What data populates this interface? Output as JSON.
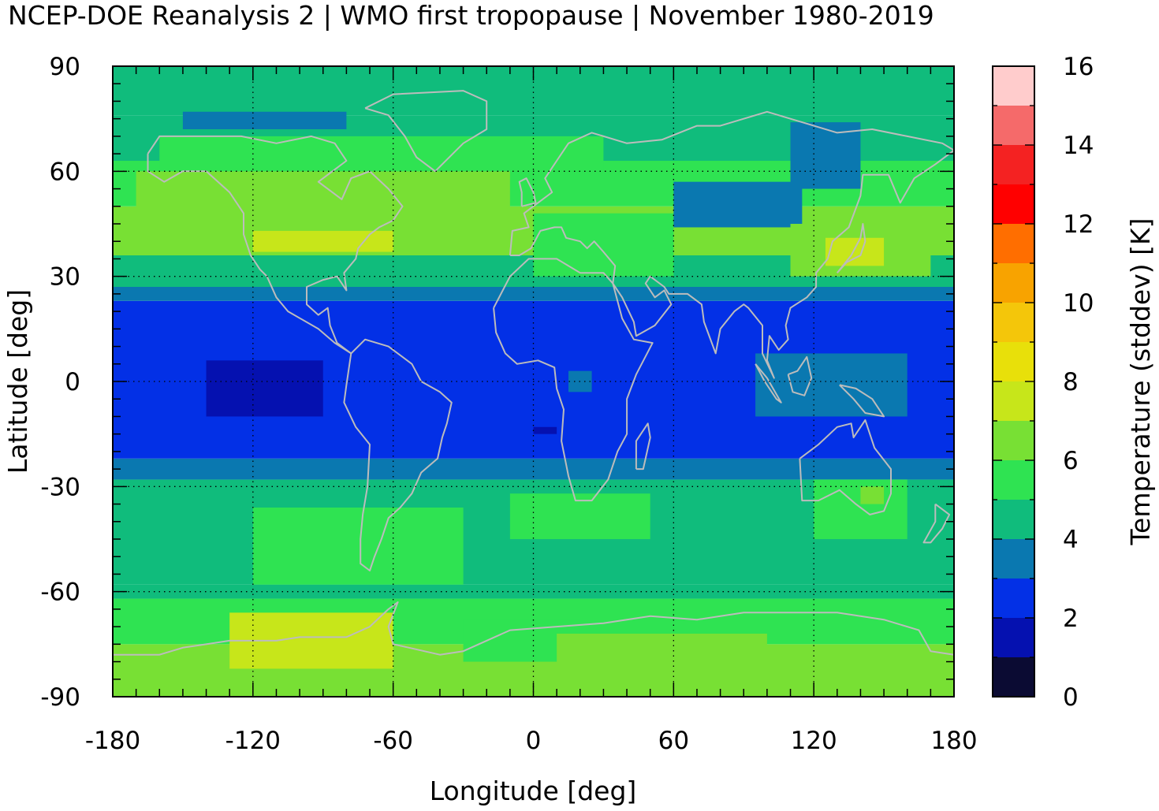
{
  "title": "NCEP-DOE Reanalysis 2 | WMO first tropopause | November 1980-2019",
  "chart_data": {
    "type": "heatmap",
    "xlabel": "Longitude [deg]",
    "ylabel": "Latitude [deg]",
    "xlim": [
      -180,
      180
    ],
    "ylim": [
      -90,
      90
    ],
    "xticks": [
      "-180",
      "-120",
      "-60",
      "0",
      "60",
      "120",
      "180"
    ],
    "yticks": [
      "-90",
      "-60",
      "-30",
      "0",
      "30",
      "60",
      "90"
    ],
    "grid": true,
    "colorbar": {
      "label": "Temperature (stddev) [K]",
      "range": [
        0,
        16
      ],
      "ticks": [
        "0",
        "2",
        "4",
        "6",
        "8",
        "10",
        "12",
        "14",
        "16"
      ],
      "levels": [
        {
          "min": 0,
          "max": 1,
          "color": "#0b0b33"
        },
        {
          "min": 1,
          "max": 2,
          "color": "#0511b0"
        },
        {
          "min": 2,
          "max": 3,
          "color": "#0330e6"
        },
        {
          "min": 3,
          "max": 4,
          "color": "#0a78b0"
        },
        {
          "min": 4,
          "max": 5,
          "color": "#10bc7c"
        },
        {
          "min": 5,
          "max": 6,
          "color": "#2fe352"
        },
        {
          "min": 6,
          "max": 7,
          "color": "#78e034"
        },
        {
          "min": 7,
          "max": 8,
          "color": "#c7e61a"
        },
        {
          "min": 8,
          "max": 9,
          "color": "#e8e00a"
        },
        {
          "min": 9,
          "max": 10,
          "color": "#f4c60a"
        },
        {
          "min": 10,
          "max": 11,
          "color": "#f8a300"
        },
        {
          "min": 11,
          "max": 12,
          "color": "#ff6e00"
        },
        {
          "min": 12,
          "max": 13,
          "color": "#ff0000"
        },
        {
          "min": 13,
          "max": 14,
          "color": "#f42222"
        },
        {
          "min": 14,
          "max": 15,
          "color": "#f56a6a"
        },
        {
          "min": 15,
          "max": 16,
          "color": "#ffcccc"
        }
      ]
    },
    "regions": [
      {
        "type": "band",
        "lat": [
          -90,
          -75
        ],
        "value": 6.2
      },
      {
        "type": "band",
        "lat": [
          -75,
          -62
        ],
        "value": 5.8
      },
      {
        "type": "band",
        "lat": [
          -62,
          -58
        ],
        "value": 4.8
      },
      {
        "type": "band",
        "lat": [
          -58,
          -45
        ],
        "value": 4.6
      },
      {
        "type": "band",
        "lat": [
          -45,
          -28
        ],
        "value": 4.7
      },
      {
        "type": "band",
        "lat": [
          -28,
          -22
        ],
        "value": 3.5
      },
      {
        "type": "band",
        "lat": [
          -22,
          23
        ],
        "value": 2.5
      },
      {
        "type": "band",
        "lat": [
          23,
          27
        ],
        "value": 3.5
      },
      {
        "type": "band",
        "lat": [
          27,
          36
        ],
        "value": 4.7
      },
      {
        "type": "band",
        "lat": [
          36,
          50
        ],
        "value": 6.3
      },
      {
        "type": "band",
        "lat": [
          50,
          63
        ],
        "value": 5.4
      },
      {
        "type": "band",
        "lat": [
          63,
          76
        ],
        "value": 4.6
      },
      {
        "type": "band",
        "lat": [
          76,
          90
        ],
        "value": 4.4
      },
      {
        "type": "patch",
        "lon": [
          -130,
          -60
        ],
        "lat": [
          -82,
          -66
        ],
        "value": 7.2
      },
      {
        "type": "patch",
        "lon": [
          -30,
          20
        ],
        "lat": [
          -80,
          -68
        ],
        "value": 5.6
      },
      {
        "type": "patch",
        "lon": [
          10,
          100
        ],
        "lat": [
          -84,
          -72
        ],
        "value": 6.2
      },
      {
        "type": "patch",
        "lon": [
          -120,
          -30
        ],
        "lat": [
          -58,
          -36
        ],
        "value": 5.6
      },
      {
        "type": "patch",
        "lon": [
          -10,
          50
        ],
        "lat": [
          -45,
          -32
        ],
        "value": 5.5
      },
      {
        "type": "patch",
        "lon": [
          120,
          160
        ],
        "lat": [
          -45,
          -28
        ],
        "value": 5.7
      },
      {
        "type": "patch",
        "lon": [
          140,
          150
        ],
        "lat": [
          -35,
          -30
        ],
        "value": 6.4
      },
      {
        "type": "patch",
        "lon": [
          95,
          160
        ],
        "lat": [
          -10,
          8
        ],
        "value": 3.5
      },
      {
        "type": "patch",
        "lon": [
          -140,
          -90
        ],
        "lat": [
          -10,
          6
        ],
        "value": 1.5
      },
      {
        "type": "patch",
        "lon": [
          15,
          25
        ],
        "lat": [
          -3,
          3
        ],
        "value": 3.5
      },
      {
        "type": "patch",
        "lon": [
          0,
          10
        ],
        "lat": [
          -15,
          -13
        ],
        "value": 1.4
      },
      {
        "type": "patch",
        "lon": [
          -170,
          -10
        ],
        "lat": [
          36,
          60
        ],
        "value": 6.3
      },
      {
        "type": "patch",
        "lon": [
          -120,
          -60
        ],
        "lat": [
          37,
          43
        ],
        "value": 7.3
      },
      {
        "type": "patch",
        "lon": [
          -60,
          -40
        ],
        "lat": [
          48,
          55
        ],
        "value": 7.2
      },
      {
        "type": "patch",
        "lon": [
          -60,
          -20
        ],
        "lat": [
          42,
          56
        ],
        "value": 6.7
      },
      {
        "type": "patch",
        "lon": [
          0,
          60
        ],
        "lat": [
          30,
          48
        ],
        "value": 5.6
      },
      {
        "type": "patch",
        "lon": [
          60,
          115
        ],
        "lat": [
          44,
          57
        ],
        "value": 3.5
      },
      {
        "type": "patch",
        "lon": [
          110,
          140
        ],
        "lat": [
          55,
          74
        ],
        "value": 3.5
      },
      {
        "type": "patch",
        "lon": [
          110,
          170
        ],
        "lat": [
          30,
          45
        ],
        "value": 6.3
      },
      {
        "type": "patch",
        "lon": [
          125,
          150
        ],
        "lat": [
          33,
          41
        ],
        "value": 7.3
      },
      {
        "type": "patch",
        "lon": [
          -150,
          -80
        ],
        "lat": [
          72,
          77
        ],
        "value": 3.5
      },
      {
        "type": "patch",
        "lon": [
          -160,
          30
        ],
        "lat": [
          60,
          70
        ],
        "value": 5.7
      }
    ]
  },
  "colors": {
    "coastline": "#bcbcbc",
    "grid": "#000000",
    "frame": "#000000"
  }
}
